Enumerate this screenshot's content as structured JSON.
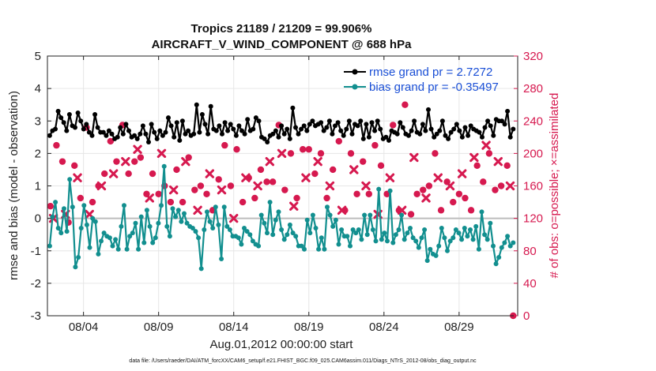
{
  "chart_data": {
    "type": "line",
    "title_line1": "Tropics 21189 / 21209 = 99.906%",
    "title_line2": "AIRCRAFT_V_WIND_COMPONENT @ 688 hPa",
    "xlabel": "Aug.01,2012 00:00:00 start",
    "ylabel": "rmse and bias (model - observation)",
    "y2label": "# of obs: o=possible; ×=assimilated",
    "footer": "data file: /Users/raeder/DAI/ATM_forcXX/CAM6_setup/f.e21.FHIST_BGC.f09_025.CAM6assim.011/Diags_NTrS_2012-08/obs_diag_output.nc",
    "xlim": [
      1.6,
      32.9
    ],
    "ylim": [
      -3,
      5
    ],
    "y2lim": [
      0,
      320
    ],
    "x_ticks": [
      4,
      9,
      14,
      19,
      24,
      29
    ],
    "x_tick_labels": [
      "08/04",
      "08/09",
      "08/14",
      "08/19",
      "08/24",
      "08/29"
    ],
    "y_ticks": [
      -3,
      -2,
      -1,
      0,
      1,
      2,
      3,
      4,
      5
    ],
    "y_tick_labels": [
      "-3",
      "-2",
      "-1",
      "0",
      "1",
      "2",
      "3",
      "4",
      "5"
    ],
    "y2_ticks": [
      0,
      40,
      80,
      120,
      160,
      200,
      240,
      280,
      320
    ],
    "y2_tick_labels": [
      "0",
      "40",
      "80",
      "120",
      "160",
      "200",
      "240",
      "280",
      "320"
    ],
    "grid": true,
    "legend_position": "top-right",
    "series": [
      {
        "name": "rmse grand pr = 2.7272",
        "color": "#000000",
        "values": [
          2.55,
          2.7,
          2.75,
          3.3,
          3.1,
          2.95,
          2.7,
          3.2,
          2.85,
          2.8,
          3.25,
          3.0,
          2.75,
          2.9,
          2.65,
          2.55,
          3.2,
          2.8,
          2.65,
          2.65,
          2.55,
          2.7,
          2.6,
          2.45,
          2.5,
          2.8,
          2.6,
          2.9,
          2.7,
          2.5,
          2.55,
          2.45,
          2.6,
          2.85,
          2.6,
          2.35,
          2.9,
          2.65,
          2.45,
          2.7,
          2.55,
          2.65,
          3.1,
          2.85,
          2.5,
          2.95,
          2.4,
          3.0,
          2.6,
          2.7,
          2.55,
          2.6,
          3.5,
          2.65,
          3.2,
          2.9,
          2.6,
          3.45,
          2.75,
          2.7,
          2.85,
          2.6,
          2.95,
          2.7,
          2.9,
          2.75,
          2.55,
          2.85,
          2.7,
          2.6,
          3.05,
          2.7,
          2.75,
          3.1,
          3.0,
          2.5,
          2.45,
          2.35,
          2.55,
          2.6,
          2.7,
          2.5,
          2.85,
          2.6,
          2.75,
          2.45,
          3.4,
          2.8,
          2.6,
          2.75,
          2.85,
          2.7,
          2.9,
          3.0,
          2.85,
          2.9,
          2.95,
          2.7,
          2.8,
          3.0,
          2.6,
          2.85,
          2.95,
          2.7,
          2.55,
          2.75,
          3.0,
          2.6,
          2.9,
          2.85,
          3.0,
          2.45,
          2.9,
          2.5,
          2.95,
          2.7,
          3.0,
          2.75,
          2.45,
          2.5,
          2.4,
          2.7,
          2.65,
          2.6,
          2.95,
          2.8,
          2.6,
          2.55,
          2.7,
          3.0,
          2.65,
          2.6,
          2.9,
          2.7,
          3.35,
          2.75,
          2.5,
          2.6,
          2.7,
          3.0,
          2.55,
          2.45,
          2.65,
          2.75,
          2.9,
          2.7,
          2.5,
          2.8,
          2.55,
          2.85,
          2.75,
          2.7,
          2.65,
          2.5,
          2.8,
          3.0,
          2.85,
          2.55,
          3.05,
          3.0,
          3.0,
          2.9,
          3.3,
          2.5,
          2.75
        ]
      },
      {
        "name": "bias grand pr = -0.35497",
        "color": "#128f8f",
        "values": [
          -0.85,
          0.05,
          0.5,
          -0.3,
          -0.45,
          0.3,
          -0.4,
          1.2,
          0.35,
          -1.5,
          -1.2,
          -0.3,
          0.4,
          -0.2,
          -0.9,
          0.0,
          -0.1,
          -1.1,
          -0.7,
          -0.45,
          -0.55,
          -0.6,
          -0.85,
          -0.65,
          -0.95,
          -0.25,
          0.4,
          -0.95,
          -0.55,
          -0.45,
          -0.15,
          -0.95,
          0.05,
          -0.75,
          0.25,
          -0.25,
          -0.75,
          -0.6,
          -0.15,
          0.4,
          1.6,
          -0.25,
          -0.55,
          0.3,
          0.05,
          0.25,
          -0.1,
          0.15,
          -0.15,
          -0.25,
          -0.3,
          -0.4,
          -0.6,
          -1.55,
          -0.35,
          0.2,
          -0.1,
          -0.3,
          0.35,
          -0.2,
          -1.25,
          0.35,
          -0.25,
          -0.35,
          -0.55,
          -0.55,
          -0.6,
          -0.8,
          -0.3,
          -0.4,
          -0.5,
          -0.7,
          -0.8,
          -0.85,
          0.1,
          -0.15,
          -0.45,
          0.5,
          -0.5,
          -0.05,
          0.2,
          -0.35,
          -0.65,
          -0.5,
          -0.2,
          -0.45,
          -0.55,
          -0.85,
          -0.85,
          -0.95,
          -0.05,
          -0.45,
          0.1,
          -0.3,
          -0.95,
          -0.6,
          -0.95,
          0.35,
          0.1,
          -0.25,
          -0.05,
          -0.8,
          -0.35,
          -0.55,
          -0.55,
          -0.85,
          -0.35,
          -0.45,
          -0.35,
          -0.65,
          0.1,
          -0.5,
          0.1,
          -0.35,
          -0.7,
          0.9,
          -0.65,
          -0.45,
          -0.7,
          0.85,
          -0.75,
          -0.5,
          -0.35,
          0.1,
          -0.65,
          -0.45,
          -0.3,
          -0.6,
          -0.7,
          -0.9,
          -0.6,
          -0.35,
          -1.3,
          -0.95,
          -1.1,
          -1.15,
          -0.85,
          -0.3,
          -0.6,
          -1.0,
          -0.7,
          -0.6,
          -0.35,
          -0.45,
          -0.65,
          -0.3,
          -0.55,
          -0.35,
          -0.65,
          -0.25,
          -0.95,
          0.2,
          -0.5,
          -0.65,
          -0.15,
          -0.85,
          -1.4,
          -1.2,
          -0.9,
          -0.75,
          -0.55,
          -0.85,
          -0.75
        ]
      }
    ],
    "obs_series": [
      {
        "name": "possible obs (o)",
        "color": "#d6194f",
        "shape": "circle",
        "x": [
          1.8,
          2.2,
          2.6,
          3.0,
          3.4,
          3.8,
          4.2,
          4.6,
          5.0,
          5.4,
          5.8,
          6.2,
          6.6,
          7.0,
          7.4,
          7.8,
          8.2,
          8.6,
          9.0,
          9.4,
          9.8,
          10.2,
          10.6,
          11.0,
          11.4,
          11.8,
          12.2,
          12.6,
          13.0,
          13.4,
          13.8,
          14.2,
          14.6,
          15.0,
          15.4,
          15.8,
          16.2,
          16.6,
          17.0,
          17.4,
          17.8,
          18.2,
          18.6,
          19.0,
          19.4,
          19.8,
          20.2,
          20.6,
          21.0,
          21.4,
          21.8,
          22.2,
          22.6,
          23.0,
          23.4,
          23.8,
          24.2,
          24.6,
          25.0,
          25.4,
          25.8,
          26.2,
          26.6,
          27.0,
          27.4,
          27.8,
          28.2,
          28.6,
          29.0,
          29.4,
          29.8,
          30.2,
          30.6,
          31.0,
          31.4,
          31.8,
          32.2,
          32.6
        ],
        "y": [
          135,
          210,
          190,
          115,
          185,
          145,
          232,
          140,
          160,
          175,
          215,
          190,
          235,
          175,
          190,
          195,
          150,
          175,
          150,
          160,
          140,
          180,
          140,
          195,
          155,
          160,
          150,
          130,
          168,
          210,
          160,
          205,
          140,
          170,
          145,
          180,
          165,
          165,
          235,
          155,
          200,
          145,
          205,
          205,
          175,
          200,
          145,
          180,
          215,
          130,
          200,
          150,
          190,
          150,
          210,
          185,
          150,
          235,
          130,
          260,
          125,
          150,
          155,
          160,
          200,
          130,
          165,
          140,
          150,
          145,
          130,
          185,
          165,
          200,
          155,
          160,
          185,
          0
        ]
      },
      {
        "name": "assimilated obs (×)",
        "color": "#d6194f",
        "shape": "x",
        "x": [
          2.0,
          2.8,
          3.6,
          4.4,
          5.2,
          6.0,
          6.8,
          7.6,
          8.4,
          9.2,
          10.0,
          10.8,
          11.6,
          12.4,
          13.2,
          14.0,
          14.8,
          15.6,
          16.4,
          17.2,
          18.0,
          18.8,
          19.6,
          20.4,
          21.2,
          22.0,
          22.8,
          23.6,
          24.4,
          25.2,
          26.0,
          26.8,
          27.6,
          28.4,
          29.2,
          30.0,
          30.8,
          31.6,
          32.4
        ],
        "y": [
          120,
          125,
          170,
          125,
          160,
          175,
          190,
          205,
          145,
          200,
          155,
          190,
          130,
          175,
          155,
          120,
          170,
          160,
          190,
          200,
          135,
          170,
          190,
          160,
          130,
          180,
          160,
          125,
          170,
          130,
          195,
          145,
          170,
          160,
          175,
          195,
          210,
          190,
          160
        ]
      }
    ]
  }
}
